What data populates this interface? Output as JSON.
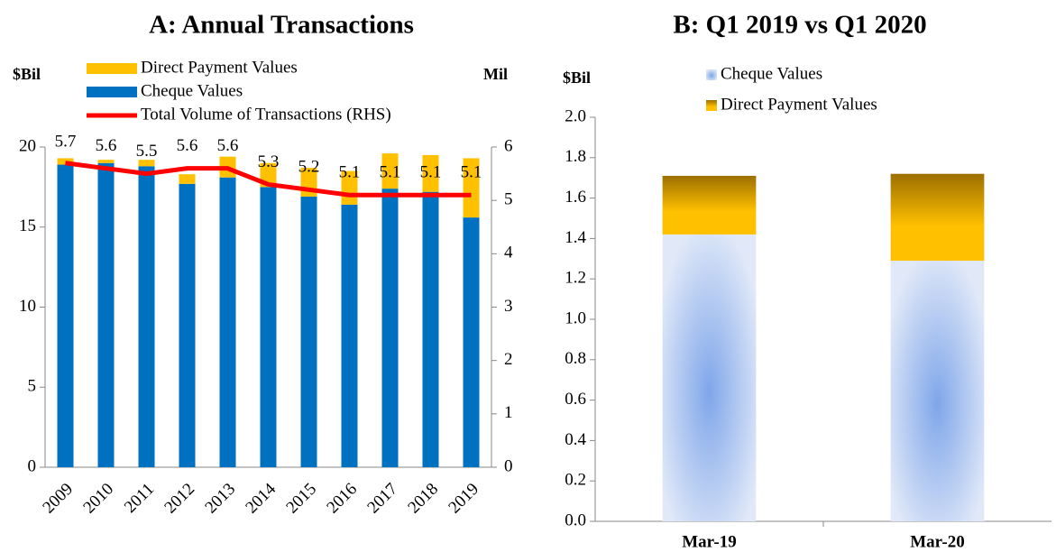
{
  "chart_data": [
    {
      "type": "bar",
      "title": "A: Annual Transactions",
      "y_label": "$Bil",
      "y2_label": "Mil",
      "categories": [
        "2009",
        "2010",
        "2011",
        "2012",
        "2013",
        "2014",
        "2015",
        "2016",
        "2017",
        "2018",
        "2019"
      ],
      "series": [
        {
          "name": "Direct Payment Values",
          "color": "#ffc000",
          "values": [
            0.4,
            0.2,
            0.4,
            0.6,
            1.3,
            1.5,
            1.8,
            2.1,
            2.2,
            2.3,
            3.7
          ]
        },
        {
          "name": "Cheque Values",
          "color": "#0070c0",
          "values": [
            18.9,
            19.0,
            18.8,
            17.7,
            18.1,
            17.5,
            16.9,
            16.4,
            17.4,
            17.2,
            15.6
          ]
        },
        {
          "name": "Total Volume of Transactions (RHS)",
          "color": "#ff0000",
          "axis": "y2",
          "values": [
            5.7,
            5.6,
            5.5,
            5.6,
            5.6,
            5.3,
            5.2,
            5.1,
            5.1,
            5.1,
            5.1
          ]
        }
      ],
      "ylim": [
        0,
        20
      ],
      "yticks": [
        0,
        5,
        10,
        15,
        20
      ],
      "y2lim": [
        0,
        6
      ],
      "y2ticks": [
        0,
        1,
        2,
        3,
        4,
        5,
        6
      ]
    },
    {
      "type": "bar",
      "title": "B: Q1 2019 vs Q1 2020",
      "y_label": "$Bil",
      "categories": [
        "Mar-19",
        "Mar-20"
      ],
      "series": [
        {
          "name": "Cheque Values",
          "color": "#aec6f0",
          "values": [
            1.42,
            1.29
          ]
        },
        {
          "name": "Direct Payment Values",
          "color": "#d9a400",
          "values": [
            0.29,
            0.43
          ]
        }
      ],
      "ylim": [
        0,
        2
      ],
      "yticks": [
        {
          "value": 0,
          "label": "0.0"
        },
        0.2,
        0.4,
        0.6,
        0.8,
        {
          "value": 1,
          "label": "1.0"
        },
        1.2,
        1.4,
        1.6,
        1.8,
        {
          "value": 2,
          "label": "2.0"
        }
      ]
    }
  ]
}
